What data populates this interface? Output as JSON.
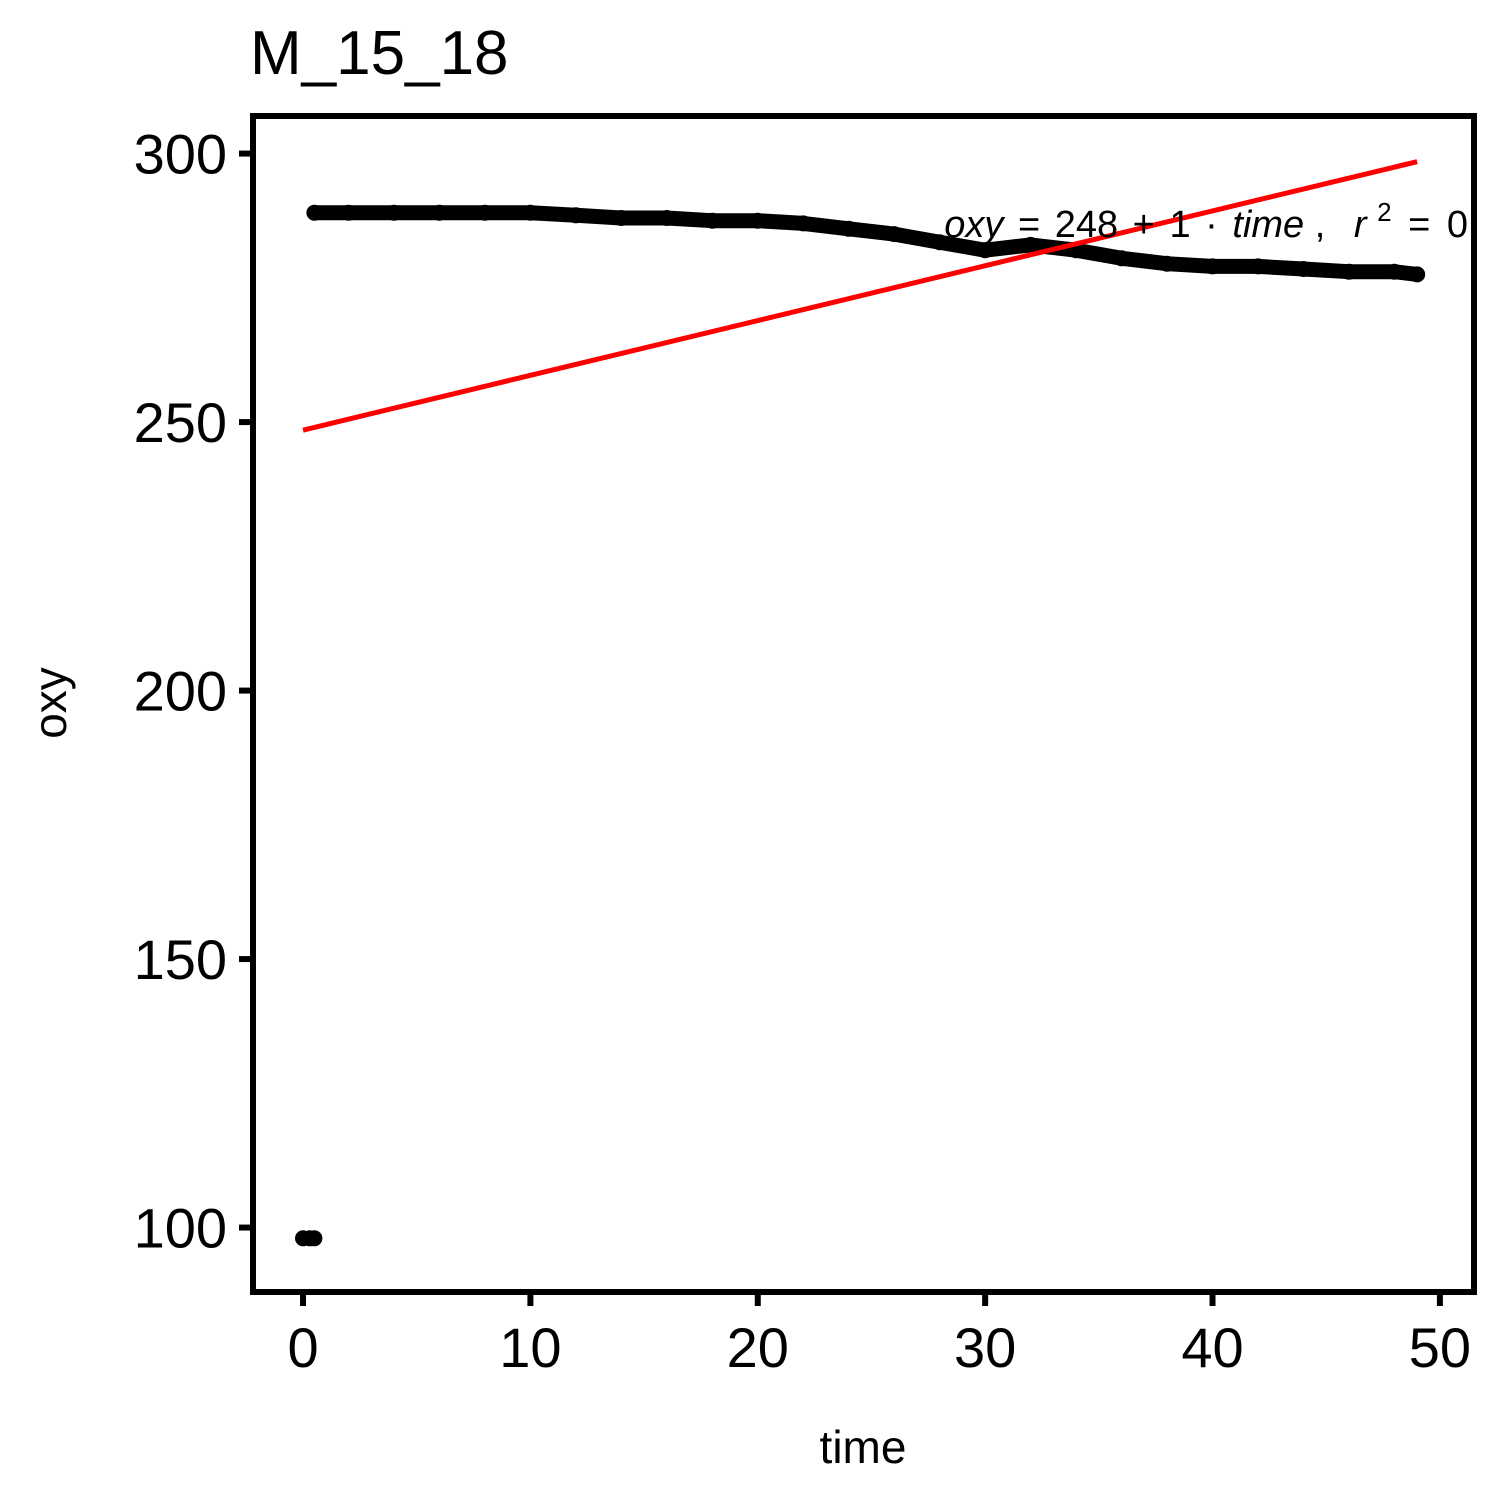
{
  "chart_data": {
    "type": "scatter",
    "title": "M_15_18",
    "xlabel": "time",
    "ylabel": "oxy",
    "xlim": [
      -2.2,
      51.5
    ],
    "ylim": [
      88,
      307
    ],
    "x_ticks": [
      "0",
      "10",
      "20",
      "30",
      "40",
      "50"
    ],
    "y_ticks": [
      "100",
      "150",
      "200",
      "250",
      "300"
    ],
    "grid": false,
    "legend": "none",
    "colors": {
      "points": "#000000",
      "fit_line": "#ff0000"
    },
    "series": [
      {
        "type": "scatter",
        "points": [
          [
            0.0,
            98
          ],
          [
            0.3,
            98
          ],
          [
            0.5,
            98
          ],
          [
            0.5,
            289
          ],
          [
            2,
            289
          ],
          [
            4,
            289
          ],
          [
            6,
            289
          ],
          [
            8,
            289
          ],
          [
            10,
            289
          ],
          [
            12,
            288.5
          ],
          [
            14,
            288
          ],
          [
            16,
            288
          ],
          [
            18,
            287.5
          ],
          [
            20,
            287.5
          ],
          [
            22,
            287
          ],
          [
            24,
            286
          ],
          [
            26,
            285
          ],
          [
            28,
            283.5
          ],
          [
            30,
            282
          ],
          [
            32,
            283
          ],
          [
            34,
            282
          ],
          [
            36,
            280.5
          ],
          [
            38,
            279.5
          ],
          [
            40,
            279
          ],
          [
            42,
            279
          ],
          [
            44,
            278.5
          ],
          [
            46,
            278
          ],
          [
            48,
            278
          ],
          [
            49,
            277.5
          ]
        ]
      },
      {
        "type": "line",
        "x": [
          0,
          49
        ],
        "y": [
          248.5,
          298.5
        ]
      }
    ],
    "annotation": {
      "lhs": "oxy",
      "eq": "=",
      "intercept": "248",
      "plus": "+",
      "slope": "1",
      "dot": "·",
      "var": "time",
      "comma": ",",
      "r": "r",
      "sup": "2",
      "eq2": "=",
      "r2": "0"
    }
  }
}
